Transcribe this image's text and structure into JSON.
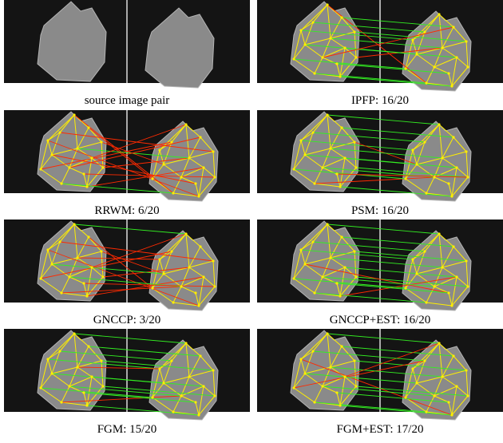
{
  "panels": [
    {
      "caption": "source image pair"
    },
    {
      "caption": "IPFP: 16/20"
    },
    {
      "caption": "RRWM: 6/20"
    },
    {
      "caption": "PSM: 16/20"
    },
    {
      "caption": "GNCCP: 3/20"
    },
    {
      "caption": "GNCCP+EST: 16/20"
    },
    {
      "caption": "FGM: 15/20"
    },
    {
      "caption": "FGM+EST: 17/20"
    }
  ]
}
